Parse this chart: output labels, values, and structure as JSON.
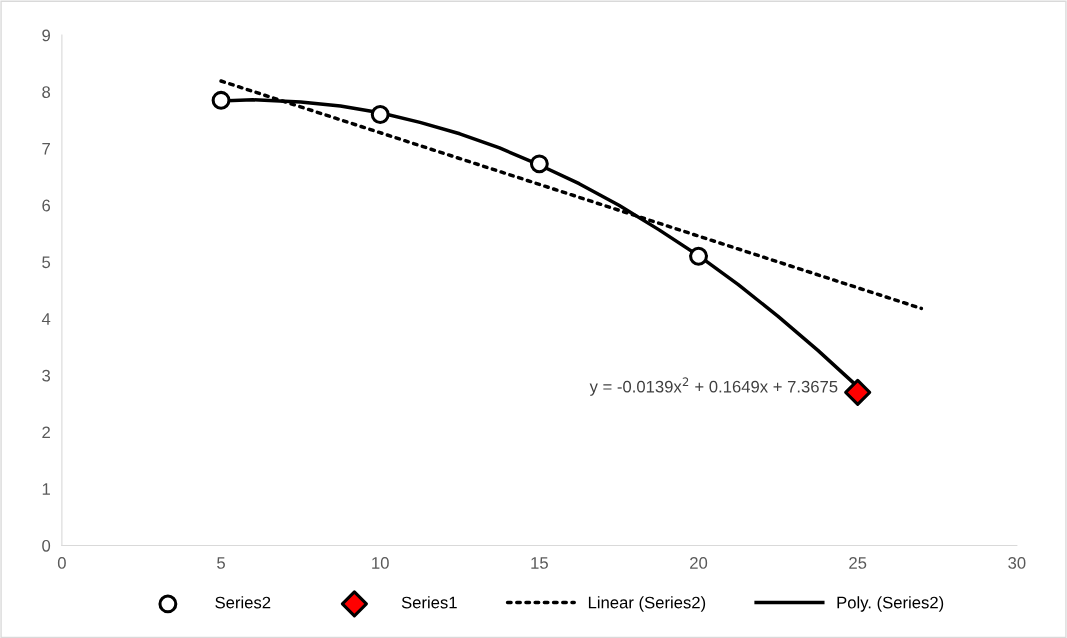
{
  "chart_data": {
    "type": "scatter",
    "xlim": [
      0,
      30
    ],
    "xticks": [
      0,
      5,
      10,
      15,
      20,
      25,
      30
    ],
    "ylim": [
      0,
      9
    ],
    "yticks": [
      0,
      1,
      2,
      3,
      4,
      5,
      6,
      7,
      8,
      9
    ],
    "grid": false,
    "legend": "bottom",
    "series": [
      {
        "name": "Series2",
        "marker": "circle",
        "color": "#000000",
        "x": [
          5,
          10,
          15,
          20
        ],
        "values": [
          7.85,
          7.6,
          6.73,
          5.1
        ]
      },
      {
        "name": "Series1",
        "marker": "diamond",
        "color": "#ff0000",
        "x": [
          25
        ],
        "values": [
          2.7
        ]
      },
      {
        "name": "Linear (Series2)",
        "type": "line",
        "marker": "none",
        "line_style": "dotted",
        "color": "#000000",
        "x": [
          5,
          27
        ],
        "values": [
          8.19,
          4.18
        ]
      },
      {
        "name": "Poly. (Series2)",
        "type": "line",
        "marker": "none",
        "line_style": "solid",
        "color": "#000000",
        "x": [
          5,
          6,
          7.5,
          8.75,
          10,
          11.25,
          12.5,
          13.75,
          15,
          16.25,
          17.5,
          18.75,
          20,
          21.25,
          22.5,
          23.75,
          25
        ],
        "values": [
          7.84,
          7.86,
          7.82,
          7.75,
          7.63,
          7.46,
          7.26,
          7.01,
          6.71,
          6.38,
          6.0,
          5.57,
          5.11,
          4.6,
          4.04,
          3.44,
          2.8
        ]
      }
    ],
    "annotations": [
      {
        "text": "y = -0.0139x$^{2}$ + 0.1649x + 7.3675",
        "x": 25,
        "y": 2.8
      }
    ]
  }
}
